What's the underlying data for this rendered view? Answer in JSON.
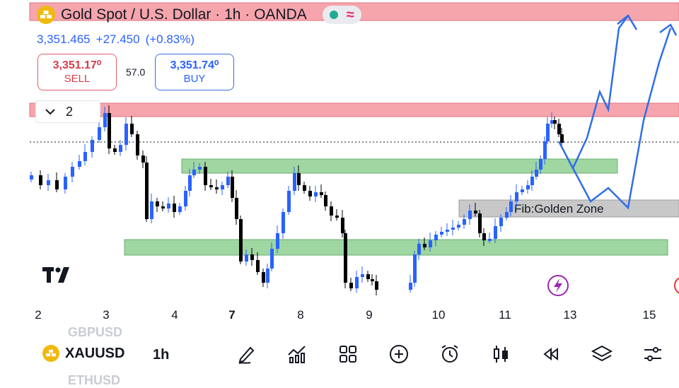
{
  "header": {
    "title": "Gold Spot / U.S. Dollar · 1h · OANDA",
    "last_price": "3,351.465",
    "change": "+27.450",
    "change_pct": "(+0.83%)"
  },
  "trade": {
    "sell_price": "3,351.17⁰",
    "sell_label": "SELL",
    "spread": "57.0",
    "buy_price": "3,351.74⁰",
    "buy_label": "BUY"
  },
  "indicators": {
    "count": "2"
  },
  "annotation": {
    "fib_label": "Fib:Golden Zone"
  },
  "axis": {
    "dates": [
      "2",
      "3",
      "4",
      "7",
      "8",
      "9",
      "10",
      "11",
      "13",
      "15"
    ]
  },
  "bottom_bar": {
    "symbol": "XAUUSD",
    "interval": "1h",
    "ghost_above": "GBPUSD",
    "ghost_below": "ETHUSD",
    "tools": [
      "pencil-icon",
      "indicator-chart-icon",
      "grid-icon",
      "plus-circle-icon",
      "alarm-clock-icon",
      "candles-icon",
      "rewind-icon",
      "layers-icon",
      "settings-sliders-icon"
    ]
  },
  "colors": {
    "resistance_zone": "#f6a5ad",
    "support_zone": "#9fd6a2",
    "fib_zone": "#c8c8c8",
    "candle": "#000000",
    "candle_up": "#2962ff",
    "projection": "#2f6ee8",
    "price_text": "#2962ff",
    "sell": "#d63c4a"
  }
}
